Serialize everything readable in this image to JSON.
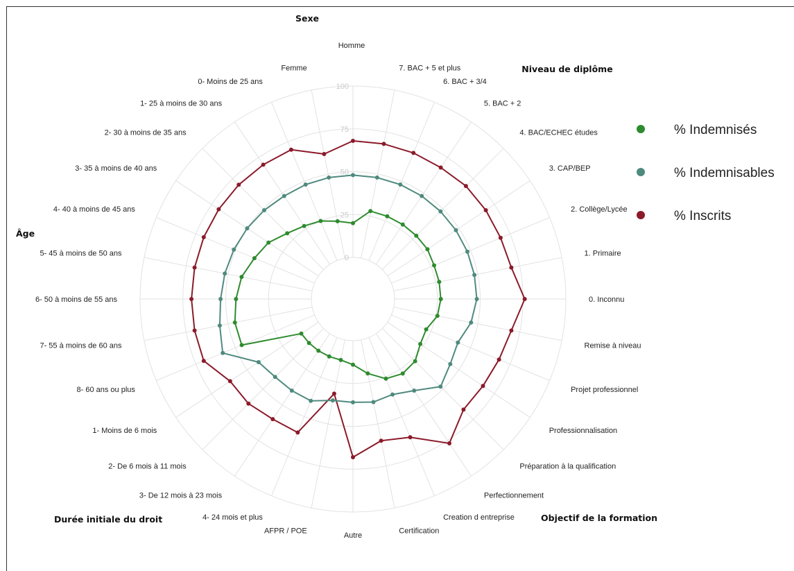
{
  "chart_data": {
    "type": "radar",
    "rticks": [
      0,
      25,
      50,
      75,
      100
    ],
    "rlim": [
      0,
      100
    ],
    "categories": [
      "Homme",
      "7. BAC + 5 et plus",
      "6. BAC + 3/4",
      "5. BAC + 2",
      "4. BAC/ECHEC études",
      "3. CAP/BEP",
      "2. Collège/Lycée",
      "1. Primaire",
      "0. Inconnu",
      "Remise à niveau",
      "Projet professionnel",
      "Professionnalisation",
      "Préparation à la qualification",
      "Perfectionnement",
      "Creation  d entreprise",
      "Certification",
      "Autre",
      "AFPR / POE",
      "4- 24 mois et plus",
      "3- De 12 mois à 23 mois",
      "2- De 6 mois à 11 mois",
      "1- Moins de 6 mois",
      "8- 60 ans ou plus",
      "7- 55 à moins de 60 ans",
      "6- 50 à moins de 55 ans",
      "5- 45 à moins de 50 ans",
      "4- 40 à moins de 45 ans",
      "3- 35 à moins de 40 ans",
      "2- 30 à moins de 35 ans",
      "1- 25 à moins de 30 ans",
      "0- Moins de 25 ans",
      "Femme"
    ],
    "groups": [
      "Sexe",
      "Niveau de diplôme",
      "Âge",
      "Objectif de la formation",
      "Durée initiale du droit"
    ],
    "series": [
      {
        "name": "% Indemnisés",
        "color": "#2e8b2e",
        "values": [
          20,
          28,
          28,
          28,
          28,
          28,
          27,
          27,
          27,
          26,
          22,
          23,
          27,
          28,
          26,
          20,
          14,
          12,
          12,
          12,
          12,
          12,
          46,
          46,
          44,
          42,
          38,
          35,
          30,
          27,
          25,
          22
        ]
      },
      {
        "name": "% Indemnisables",
        "color": "#4f8a7e",
        "values": [
          48,
          48,
          48,
          48,
          48,
          48,
          48,
          48,
          48,
          46,
          42,
          44,
          48,
          40,
          36,
          37,
          36,
          36,
          40,
          40,
          40,
          42,
          58,
          55,
          53,
          52,
          51,
          50,
          49,
          48,
          48,
          48
        ]
      },
      {
        "name": "% Inscrits",
        "color": "#8b1a2a",
        "values": [
          68,
          68,
          68,
          68,
          69,
          69,
          69,
          70,
          76,
          70,
          68,
          67,
          67,
          77,
          63,
          60,
          68,
          32,
          60,
          60,
          62,
          62,
          70,
          70,
          70,
          70,
          70,
          70,
          70,
          70,
          70,
          62
        ]
      }
    ]
  }
}
